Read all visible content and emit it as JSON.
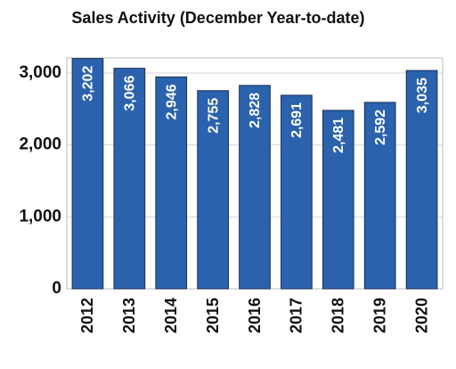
{
  "chart_data": {
    "type": "bar",
    "title": "Sales Activity (December Year-to-date)",
    "categories": [
      "2012",
      "2013",
      "2014",
      "2015",
      "2016",
      "2017",
      "2018",
      "2019",
      "2020"
    ],
    "values": [
      3202,
      3066,
      2946,
      2755,
      2828,
      2691,
      2481,
      2592,
      3035
    ],
    "value_labels": [
      "3,202",
      "3,066",
      "2,946",
      "2,755",
      "2,828",
      "2,691",
      "2,481",
      "2,592",
      "3,035"
    ],
    "color": "#2b62ad",
    "ylim": [
      0,
      3210
    ],
    "yticks": [
      0,
      {
        "value": 1000,
        "label": "1,000"
      },
      {
        "value": 2000,
        "label": "2,000"
      },
      {
        "value": 3000,
        "label": "3,000"
      }
    ],
    "grid": true
  }
}
